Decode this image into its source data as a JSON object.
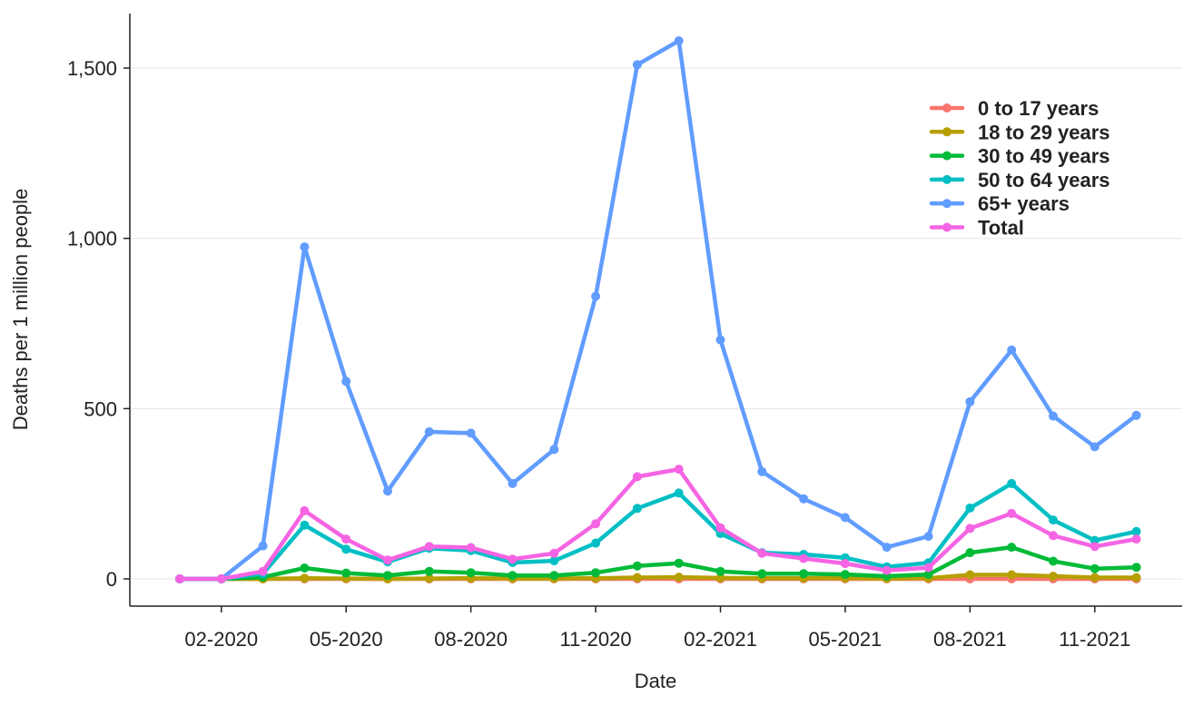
{
  "chart_data": {
    "type": "line",
    "title": "",
    "xlabel": "Date",
    "ylabel": "Deaths per 1 million people",
    "ylim": [
      -80,
      1660
    ],
    "yticks": [
      0,
      500,
      1000,
      1500
    ],
    "ytick_labels": [
      "0",
      "500",
      "1,000",
      "1,500"
    ],
    "xticks": [
      1,
      4,
      7,
      10,
      13,
      16,
      19,
      22
    ],
    "xtick_labels": [
      "02-2020",
      "05-2020",
      "08-2020",
      "11-2020",
      "02-2021",
      "05-2021",
      "08-2021",
      "11-2021"
    ],
    "x_range": [
      -1.2,
      24.1
    ],
    "x": [
      0,
      1,
      2,
      3,
      4,
      5,
      6,
      7,
      8,
      9,
      10,
      11,
      12,
      13,
      14,
      15,
      16,
      17,
      18,
      19,
      20,
      21,
      22,
      23
    ],
    "x_dates": [
      "01-2020",
      "02-2020",
      "03-2020",
      "04-2020",
      "05-2020",
      "06-2020",
      "07-2020",
      "08-2020",
      "09-2020",
      "10-2020",
      "11-2020",
      "12-2020",
      "01-2021",
      "02-2021",
      "03-2021",
      "04-2021",
      "05-2021",
      "06-2021",
      "07-2021",
      "08-2021",
      "09-2021",
      "10-2021",
      "11-2021",
      "12-2021"
    ],
    "grid": "horizontal",
    "legend_position": "top-right",
    "series": [
      {
        "name": "0 to 17 years",
        "color": "#F8766D",
        "values": [
          0,
          0,
          0,
          0,
          0,
          0,
          0,
          0,
          0,
          0,
          0,
          0,
          0,
          0,
          0,
          0,
          0,
          0,
          0,
          0,
          0,
          0,
          0,
          0
        ]
      },
      {
        "name": "18 to 29 years",
        "color": "#B79F00",
        "values": [
          0,
          0,
          0,
          2,
          1,
          0,
          1,
          2,
          1,
          1,
          2,
          4,
          5,
          3,
          2,
          2,
          2,
          1,
          2,
          12,
          12,
          8,
          4,
          4
        ]
      },
      {
        "name": "30 to 49 years",
        "color": "#00BA38",
        "values": [
          0,
          0,
          5,
          32,
          17,
          10,
          22,
          18,
          10,
          10,
          18,
          38,
          46,
          22,
          15,
          15,
          13,
          8,
          13,
          77,
          93,
          52,
          30,
          34
        ]
      },
      {
        "name": "50 to 64 years",
        "color": "#00BFC4",
        "values": [
          0,
          0,
          15,
          158,
          87,
          50,
          90,
          83,
          48,
          53,
          105,
          207,
          252,
          133,
          77,
          72,
          62,
          35,
          47,
          208,
          280,
          173,
          113,
          139
        ]
      },
      {
        "name": "65+ years",
        "color": "#619CFF",
        "values": [
          0,
          0,
          97,
          975,
          580,
          258,
          432,
          428,
          280,
          380,
          830,
          1510,
          1580,
          702,
          315,
          235,
          180,
          93,
          125,
          520,
          672,
          478,
          388,
          480
        ]
      },
      {
        "name": "Total",
        "color": "#F564E3",
        "values": [
          0,
          0,
          22,
          200,
          117,
          55,
          95,
          92,
          58,
          75,
          162,
          300,
          322,
          150,
          75,
          60,
          45,
          25,
          33,
          148,
          192,
          127,
          95,
          117
        ]
      }
    ]
  }
}
